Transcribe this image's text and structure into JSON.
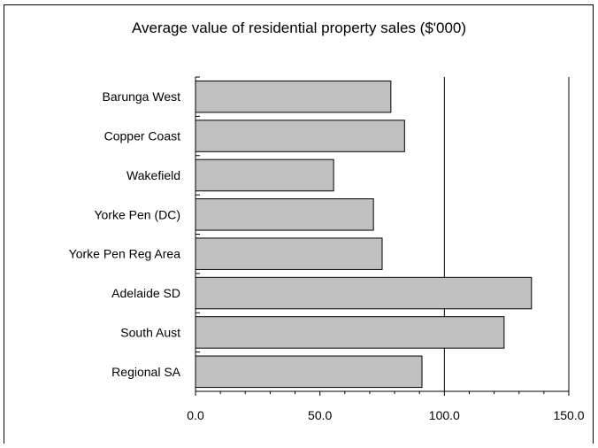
{
  "chart_data": {
    "type": "bar",
    "orientation": "horizontal",
    "title": "Average value of residential property sales ($'000)",
    "categories": [
      "Barunga West",
      "Copper Coast",
      "Wakefield",
      "Yorke Pen (DC)",
      "Yorke Pen Reg Area",
      "Adelaide SD",
      "South Aust",
      "Regional SA"
    ],
    "values": [
      78.5,
      84.0,
      55.5,
      71.5,
      75.0,
      135.0,
      124.0,
      91.0
    ],
    "xlim": [
      0,
      150
    ],
    "xticks": [
      "0.0",
      "50.0",
      "100.0",
      "150.0"
    ],
    "xlabel": "",
    "ylabel": "",
    "gridlines": "vertical major",
    "colors": {
      "bar": "#c0c0c0",
      "bar_edge": "#000000",
      "grid": "#000000"
    }
  }
}
